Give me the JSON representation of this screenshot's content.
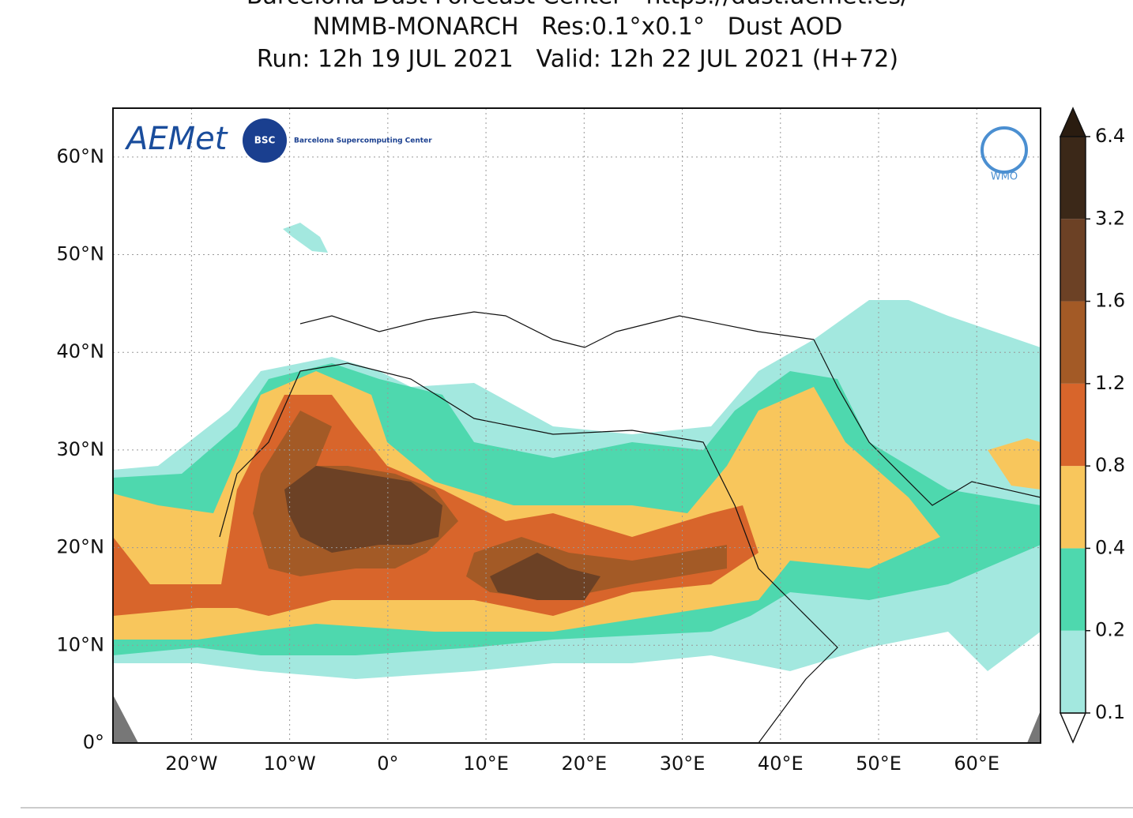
{
  "title_lines": [
    "Barcelona Dust Forecast Center - https://dust.aemet.es/",
    "NMMB-MONARCH   Res:0.1°x0.1°   Dust AOD",
    "Run: 12h 19 JUL 2021   Valid: 12h 22 JUL 2021 (H+72)"
  ],
  "map": {
    "xlim": [
      -28,
      66.5
    ],
    "ylim": [
      0,
      65
    ],
    "grid": true,
    "xticks": [
      {
        "value": -20,
        "label": "20°W"
      },
      {
        "value": -10,
        "label": "10°W"
      },
      {
        "value": 0,
        "label": "0°"
      },
      {
        "value": 10,
        "label": "10°E"
      },
      {
        "value": 20,
        "label": "20°E"
      },
      {
        "value": 30,
        "label": "30°E"
      },
      {
        "value": 40,
        "label": "40°E"
      },
      {
        "value": 50,
        "label": "50°E"
      },
      {
        "value": 60,
        "label": "60°E"
      }
    ],
    "yticks": [
      {
        "value": 0,
        "label": "0°"
      },
      {
        "value": 10,
        "label": "10°N"
      },
      {
        "value": 20,
        "label": "20°N"
      },
      {
        "value": 30,
        "label": "30°N"
      },
      {
        "value": 40,
        "label": "40°N"
      },
      {
        "value": 50,
        "label": "50°N"
      },
      {
        "value": 60,
        "label": "60°N"
      }
    ]
  },
  "colorbar": {
    "levels": [
      0.1,
      0.2,
      0.4,
      0.8,
      1.2,
      1.6,
      3.2,
      6.4
    ],
    "colors": [
      "#a3e8df",
      "#4ed8ae",
      "#f8c65c",
      "#d8652b",
      "#a35a26",
      "#6c4125",
      "#3b2818"
    ],
    "under_color": "#ffffff",
    "over_color": "#2a1c10"
  },
  "logos": {
    "aemet": "AEMet",
    "bsc": "BSC",
    "bsc_name": "Barcelona Supercomputing Center",
    "wmo": "WMO"
  }
}
